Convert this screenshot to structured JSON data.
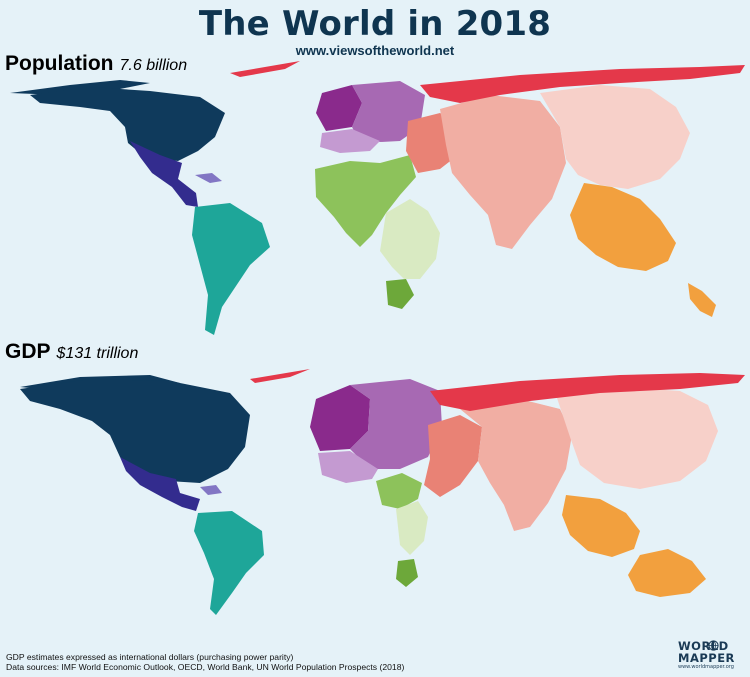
{
  "header": {
    "title": "The World in 2018",
    "url": "www.viewsoftheworld.net"
  },
  "panels": [
    {
      "label": "Population",
      "value": "7.6 billion"
    },
    {
      "label": "GDP",
      "value": "$131 trillion"
    }
  ],
  "footnotes": [
    "GDP estimates expressed as international dollars (purchasing power parity)",
    "Data sources: IMF World Economic Outlook, OECD, World Bank, UN World Population Prospects (2018)"
  ],
  "logo": {
    "line1": "WORLD",
    "line2": "MAPPER",
    "url": "www.worldmapper.org"
  },
  "colors": {
    "ocean": "#e5f2f8",
    "title": "#0f3550",
    "north_america": "#0f3a5c",
    "central_america": "#332c8e",
    "caribbean": "#8276c4",
    "south_america": "#1ea699",
    "western_europe": "#8a2a8c",
    "eastern_europe": "#a769b3",
    "southern_europe": "#c49ad1",
    "north_africa": "#8dc25b",
    "east_africa": "#d9eac2",
    "southern_africa": "#6da83a",
    "middle_east": "#e98275",
    "russia_central_asia": "#e4384a",
    "south_asia": "#f1aea3",
    "east_asia": "#f7d0c9",
    "southeast_asia_oceania": "#f2a03e"
  }
}
